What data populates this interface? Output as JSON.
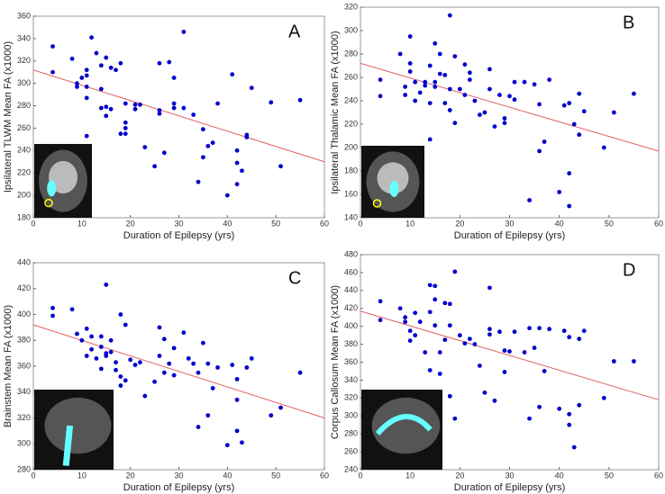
{
  "chart_data": [
    {
      "type": "scatter",
      "panel_label": "A",
      "x_label": "Duration of Epilepsy (yrs)",
      "y_label": "Ipsilateral TLWM Mean FA (x1000)",
      "xlim": [
        0,
        60
      ],
      "ylim": [
        180,
        360
      ],
      "xticks": [
        0,
        10,
        20,
        30,
        40,
        50,
        60
      ],
      "yticks": [
        180,
        200,
        220,
        240,
        260,
        280,
        300,
        320,
        340,
        360
      ],
      "color": "#0000cc",
      "x": [
        4,
        4,
        8,
        9,
        9,
        10,
        11,
        11,
        11,
        11,
        11,
        12,
        13,
        14,
        14,
        14,
        15,
        15,
        15,
        16,
        16,
        17,
        18,
        18,
        19,
        19,
        19,
        19,
        21,
        21,
        22,
        23,
        25,
        26,
        26,
        26,
        27,
        28,
        29,
        29,
        29,
        31,
        31,
        33,
        34,
        35,
        35,
        36,
        37,
        38,
        40,
        41,
        42,
        42,
        42,
        43,
        44,
        44,
        45,
        49,
        51,
        55
      ],
      "y": [
        333,
        310,
        322,
        300,
        297,
        305,
        312,
        307,
        297,
        287,
        253,
        341,
        327,
        316,
        295,
        278,
        323,
        279,
        271,
        314,
        277,
        312,
        318,
        255,
        282,
        265,
        260,
        255,
        281,
        277,
        281,
        243,
        226,
        318,
        276,
        273,
        238,
        319,
        305,
        282,
        278,
        346,
        278,
        272,
        212,
        259,
        234,
        244,
        247,
        282,
        200,
        308,
        240,
        229,
        210,
        222,
        252,
        254,
        296,
        283,
        226,
        285
      ],
      "trendline": {
        "x": [
          0,
          60
        ],
        "y": [
          312,
          230
        ],
        "color": "#e06060"
      }
    },
    {
      "type": "scatter",
      "panel_label": "B",
      "x_label": "Duration of Epilepsy (yrs)",
      "y_label": "Ipsilateral Thalamic Mean FA (x1000)",
      "xlim": [
        0,
        60
      ],
      "ylim": [
        140,
        320
      ],
      "xticks": [
        0,
        10,
        20,
        30,
        40,
        50,
        60
      ],
      "yticks": [
        140,
        160,
        180,
        200,
        220,
        240,
        260,
        280,
        300,
        320
      ],
      "color": "#0000cc",
      "x": [
        4,
        4,
        8,
        9,
        9,
        10,
        10,
        10,
        11,
        11,
        12,
        13,
        13,
        14,
        14,
        14,
        15,
        15,
        15,
        16,
        16,
        17,
        17,
        18,
        18,
        18,
        19,
        19,
        20,
        21,
        21,
        22,
        22,
        23,
        24,
        25,
        26,
        26,
        27,
        28,
        29,
        29,
        30,
        31,
        31,
        33,
        34,
        35,
        36,
        36,
        37,
        38,
        40,
        41,
        42,
        42,
        42,
        43,
        44,
        44,
        45,
        49,
        51,
        55
      ],
      "y": [
        258,
        244,
        280,
        252,
        245,
        295,
        272,
        265,
        240,
        256,
        247,
        256,
        253,
        238,
        207,
        270,
        289,
        256,
        252,
        280,
        263,
        262,
        238,
        313,
        250,
        232,
        221,
        278,
        250,
        271,
        245,
        264,
        258,
        240,
        228,
        230,
        267,
        250,
        218,
        245,
        225,
        221,
        244,
        256,
        241,
        256,
        155,
        254,
        237,
        197,
        205,
        258,
        162,
        236,
        178,
        238,
        150,
        220,
        246,
        211,
        231,
        200,
        230,
        246
      ],
      "trendline": {
        "x": [
          0,
          60
        ],
        "y": [
          272,
          197
        ],
        "color": "#e06060"
      }
    },
    {
      "type": "scatter",
      "panel_label": "C",
      "x_label": "Duration of Epilepsy (yrs)",
      "y_label": "Brainstem Mean FA (x1000)",
      "xlim": [
        0,
        60
      ],
      "ylim": [
        280,
        440
      ],
      "xticks": [
        0,
        10,
        20,
        30,
        40,
        50,
        60
      ],
      "yticks": [
        280,
        300,
        320,
        340,
        360,
        380,
        400,
        420,
        440
      ],
      "color": "#0000cc",
      "x": [
        4,
        4,
        8,
        9,
        10,
        11,
        11,
        12,
        12,
        13,
        14,
        14,
        14,
        15,
        15,
        15,
        16,
        16,
        17,
        17,
        18,
        18,
        18,
        19,
        19,
        20,
        21,
        22,
        23,
        25,
        26,
        26,
        27,
        27,
        28,
        29,
        29,
        31,
        32,
        33,
        34,
        34,
        35,
        36,
        36,
        37,
        38,
        40,
        41,
        42,
        42,
        42,
        43,
        44,
        45,
        49,
        51,
        55
      ],
      "y": [
        405,
        399,
        404,
        385,
        380,
        389,
        368,
        373,
        383,
        366,
        383,
        375,
        358,
        423,
        370,
        368,
        380,
        371,
        363,
        357,
        400,
        352,
        345,
        392,
        349,
        365,
        361,
        363,
        337,
        348,
        390,
        368,
        381,
        355,
        362,
        353,
        374,
        386,
        366,
        362,
        313,
        355,
        378,
        322,
        362,
        343,
        359,
        299,
        361,
        310,
        334,
        350,
        301,
        359,
        366,
        322,
        328,
        355
      ],
      "trendline": {
        "x": [
          0,
          60
        ],
        "y": [
          392,
          320
        ],
        "color": "#e06060"
      }
    },
    {
      "type": "scatter",
      "panel_label": "D",
      "x_label": "Duration of Epilepsy (yrs)",
      "y_label": "Corpus Callosum Mean FA (x1000)",
      "xlim": [
        0,
        60
      ],
      "ylim": [
        240,
        480
      ],
      "xticks": [
        0,
        10,
        20,
        30,
        40,
        50,
        60
      ],
      "yticks": [
        240,
        260,
        280,
        300,
        320,
        340,
        360,
        380,
        400,
        420,
        440,
        460,
        480
      ],
      "color": "#0000cc",
      "x": [
        4,
        4,
        8,
        9,
        9,
        10,
        10,
        11,
        11,
        12,
        13,
        14,
        14,
        14,
        15,
        15,
        15,
        16,
        16,
        17,
        17,
        18,
        18,
        18,
        19,
        19,
        20,
        21,
        22,
        23,
        24,
        25,
        26,
        26,
        26,
        27,
        28,
        29,
        29,
        30,
        31,
        33,
        34,
        34,
        35,
        36,
        36,
        37,
        38,
        40,
        41,
        42,
        42,
        42,
        43,
        44,
        44,
        45,
        49,
        51,
        55
      ],
      "y": [
        428,
        407,
        420,
        410,
        405,
        395,
        384,
        415,
        390,
        405,
        371,
        446,
        416,
        351,
        445,
        430,
        401,
        371,
        347,
        426,
        385,
        425,
        401,
        322,
        461,
        297,
        390,
        381,
        386,
        380,
        356,
        326,
        443,
        397,
        391,
        317,
        394,
        373,
        349,
        372,
        394,
        371,
        398,
        297,
        376,
        310,
        398,
        350,
        397,
        308,
        395,
        290,
        302,
        388,
        265,
        386,
        312,
        395,
        320,
        361,
        361
      ],
      "trendline": {
        "x": [
          0,
          60
        ],
        "y": [
          417,
          318
        ],
        "color": "#e06060"
      }
    }
  ]
}
